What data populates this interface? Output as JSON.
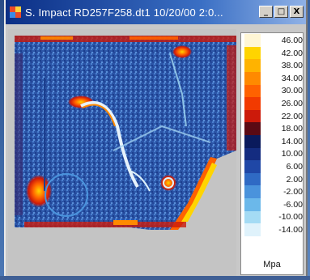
{
  "window": {
    "title": "S. Impact RD257F258.dt1  10/20/00 2:0..."
  },
  "titlebar_buttons": {
    "minimize": "_",
    "maximize": "□",
    "close": "X"
  },
  "legend": {
    "unit": "Mpa",
    "entries": [
      {
        "value": "46.00",
        "color": "#fff6d5"
      },
      {
        "value": "42.00",
        "color": "#ffd400"
      },
      {
        "value": "38.00",
        "color": "#ffb300"
      },
      {
        "value": "34.00",
        "color": "#ff8a00"
      },
      {
        "value": "30.00",
        "color": "#ff6200"
      },
      {
        "value": "26.00",
        "color": "#f23a00"
      },
      {
        "value": "22.00",
        "color": "#cc1a0a"
      },
      {
        "value": "18.00",
        "color": "#5a0a14"
      },
      {
        "value": "14.00",
        "color": "#0a1a5c"
      },
      {
        "value": "10.00",
        "color": "#142c80"
      },
      {
        "value": "6.00",
        "color": "#1f47a6"
      },
      {
        "value": "2.00",
        "color": "#2f6ac4"
      },
      {
        "value": "-2.00",
        "color": "#4a93dc"
      },
      {
        "value": "-6.00",
        "color": "#6bb8ea"
      },
      {
        "value": "-10.00",
        "color": "#a4dbf4"
      },
      {
        "value": "-14.00",
        "color": "#dff2fb"
      }
    ]
  }
}
